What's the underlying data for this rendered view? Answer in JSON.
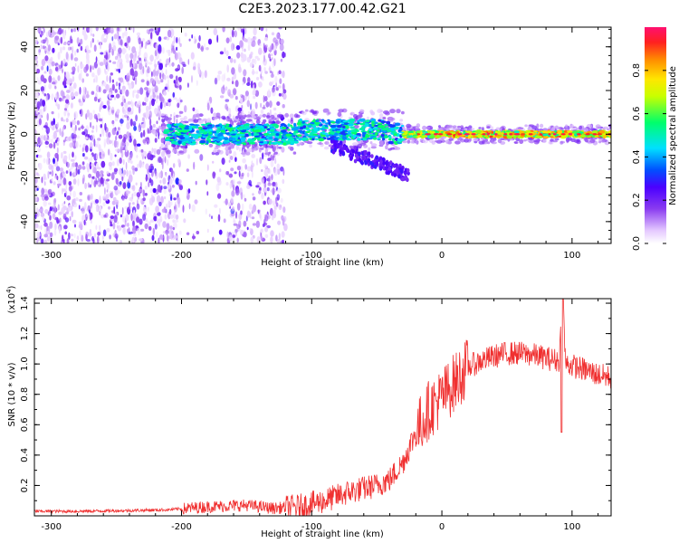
{
  "figure": {
    "title": "C2E3.2023.177.00.42.G21"
  },
  "chart_data": [
    {
      "type": "heatmap",
      "xlabel": "Height of straight line (km)",
      "ylabel": "Frequency (Hz)",
      "xlim": [
        -313,
        130
      ],
      "ylim": [
        -50,
        49
      ],
      "x_ticks": [
        -300,
        -200,
        -100,
        0,
        100
      ],
      "x_tick_labels": [
        "-300",
        "-200",
        "-100",
        "0",
        "100"
      ],
      "y_ticks": [
        -40,
        -20,
        0,
        20,
        40
      ],
      "y_tick_labels": [
        "-40",
        "-20",
        "0",
        "20",
        "40"
      ],
      "colorbar": {
        "label": "Normalized spectral amplitude",
        "range": [
          0,
          1
        ],
        "ticks": [
          0.0,
          0.2,
          0.4,
          0.6,
          0.8
        ],
        "tick_labels": [
          "0.0",
          "0.2",
          "0.4",
          "0.6",
          "0.8"
        ],
        "colormap": [
          "#ffffff",
          "#e4c8ff",
          "#8a3cf0",
          "#4b00ff",
          "#0050ff",
          "#00e0ff",
          "#00ff6a",
          "#c8ff00",
          "#ffe600",
          "#ff8c00",
          "#ff2020",
          "#ff1070"
        ]
      },
      "features": [
        {
          "description_values": "Scattered noise for heights below about -120 km; bright band near 0 Hz from about -210 km to 130 km, amplitude increasing with height (up to ~1.0 above 0 km)"
        }
      ]
    },
    {
      "type": "line",
      "xlabel": "Height of straight line (km)",
      "ylabel": "SNR (10 * v/v)",
      "multiplier_label": "(x10",
      "multiplier_exp": "4",
      "multiplier_close": ")",
      "xlim": [
        -313,
        130
      ],
      "ylim": [
        0,
        1.43
      ],
      "x_ticks": [
        -300,
        -200,
        -100,
        0,
        100
      ],
      "x_tick_labels": [
        "-300",
        "-200",
        "-100",
        "0",
        "100"
      ],
      "y_ticks": [
        0.2,
        0.4,
        0.6,
        0.8,
        1.0,
        1.2,
        1.4
      ],
      "y_tick_labels": [
        "0.2",
        "0.4",
        "0.6",
        "0.8",
        "1.0",
        "1.2",
        "1.4"
      ],
      "color": "#f03030",
      "series": [
        {
          "x": [
            -313,
            -280,
            -240,
            -210,
            -180,
            -150,
            -130,
            -110,
            -100,
            -90,
            -80,
            -70,
            -60,
            -50,
            -40,
            -30,
            -20,
            -10,
            0,
            10,
            20,
            30,
            40,
            50,
            60,
            70,
            80,
            90,
            93,
            95,
            100,
            110,
            120,
            130
          ],
          "values": [
            0.03,
            0.03,
            0.035,
            0.04,
            0.06,
            0.07,
            0.05,
            0.06,
            0.08,
            0.1,
            0.13,
            0.16,
            0.18,
            0.2,
            0.24,
            0.35,
            0.55,
            0.7,
            0.78,
            0.88,
            0.98,
            1.02,
            1.05,
            1.07,
            1.07,
            1.06,
            1.04,
            1.02,
            1.43,
            1.0,
            0.99,
            0.96,
            0.93,
            0.91
          ]
        }
      ]
    }
  ]
}
